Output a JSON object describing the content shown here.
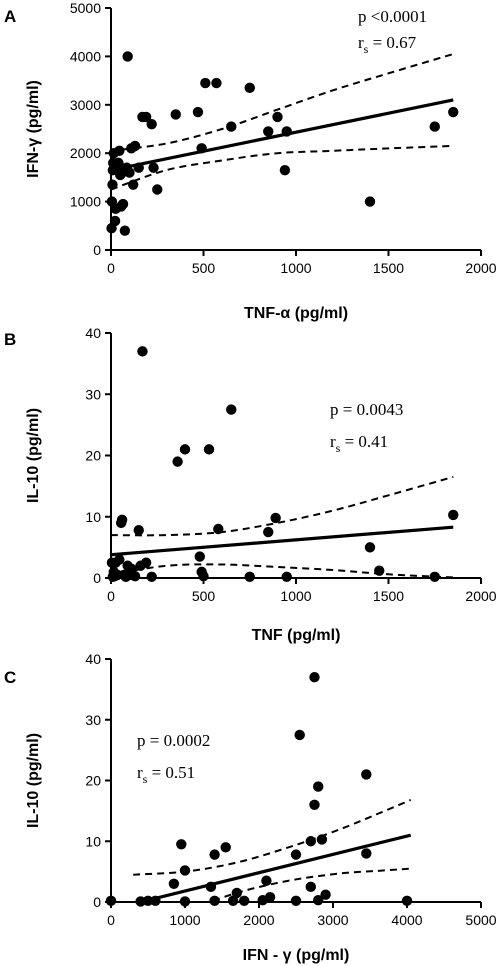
{
  "chart_data": [
    {
      "type": "scatter",
      "panel": "A",
      "xlabel": "TNF-α (pg/ml)",
      "ylabel": "IFN-γ (pg/ml)",
      "xlim": [
        0,
        2000
      ],
      "ylim": [
        0,
        5000
      ],
      "xticks": [
        0,
        500,
        1000,
        1500,
        2000
      ],
      "yticks": [
        0,
        1000,
        2000,
        3000,
        4000,
        5000
      ],
      "xtick_labels": [
        "0",
        "500",
        "1000",
        "1500",
        "2000"
      ],
      "ytick_labels": [
        "0",
        "1000",
        "2000",
        "3000",
        "4000",
        "5000"
      ],
      "annotation": {
        "p": "p <0.0001",
        "r_main": "r",
        "r_sub": "s",
        "r_value": " = 0.67"
      },
      "annotation_position": "top-right",
      "points": [
        [
          3,
          450
        ],
        [
          5,
          1000
        ],
        [
          8,
          1350
        ],
        [
          10,
          1650
        ],
        [
          12,
          1800
        ],
        [
          15,
          2000
        ],
        [
          18,
          1700
        ],
        [
          22,
          600
        ],
        [
          25,
          850
        ],
        [
          30,
          1750
        ],
        [
          40,
          1800
        ],
        [
          45,
          2050
        ],
        [
          50,
          1550
        ],
        [
          55,
          900
        ],
        [
          60,
          1600
        ],
        [
          65,
          950
        ],
        [
          75,
          400
        ],
        [
          85,
          1700
        ],
        [
          90,
          4000
        ],
        [
          100,
          1600
        ],
        [
          110,
          2100
        ],
        [
          120,
          1350
        ],
        [
          130,
          2150
        ],
        [
          150,
          1700
        ],
        [
          170,
          2750
        ],
        [
          190,
          2750
        ],
        [
          220,
          2600
        ],
        [
          230,
          1700
        ],
        [
          250,
          1250
        ],
        [
          350,
          2800
        ],
        [
          470,
          2850
        ],
        [
          490,
          2100
        ],
        [
          510,
          3450
        ],
        [
          570,
          3450
        ],
        [
          650,
          2550
        ],
        [
          750,
          3350
        ],
        [
          850,
          2450
        ],
        [
          900,
          2750
        ],
        [
          940,
          1650
        ],
        [
          950,
          2450
        ],
        [
          1400,
          1000
        ],
        [
          1750,
          2550
        ],
        [
          1850,
          2850
        ]
      ],
      "fit_line": [
        [
          0,
          1650
        ],
        [
          1850,
          3100
        ]
      ],
      "ci_upper": [
        [
          0,
          2050
        ],
        [
          300,
          2200
        ],
        [
          600,
          2500
        ],
        [
          900,
          2900
        ],
        [
          1200,
          3300
        ],
        [
          1500,
          3650
        ],
        [
          1850,
          4050
        ]
      ],
      "ci_lower": [
        [
          0,
          1250
        ],
        [
          300,
          1650
        ],
        [
          600,
          1850
        ],
        [
          900,
          2000
        ],
        [
          1200,
          2050
        ],
        [
          1500,
          2100
        ],
        [
          1850,
          2150
        ]
      ]
    },
    {
      "type": "scatter",
      "panel": "B",
      "xlabel": "TNF (pg/ml)",
      "ylabel": "IL-10 (pg/ml)",
      "xlim": [
        0,
        2000
      ],
      "ylim": [
        0,
        40
      ],
      "xticks": [
        0,
        500,
        1000,
        1500,
        2000
      ],
      "yticks": [
        0,
        10,
        20,
        30,
        40
      ],
      "xtick_labels": [
        "0",
        "500",
        "1000",
        "1500",
        "2000"
      ],
      "ytick_labels": [
        "0",
        "10",
        "20",
        "30",
        "40"
      ],
      "annotation": {
        "p": "p = 0.0043",
        "r_main": "r",
        "r_sub": "s",
        "r_value": " = 0.41"
      },
      "annotation_position": "top-right",
      "points": [
        [
          5,
          2.5
        ],
        [
          10,
          0.2
        ],
        [
          15,
          1.0
        ],
        [
          20,
          0.3
        ],
        [
          25,
          2.5
        ],
        [
          35,
          0.5
        ],
        [
          45,
          3.0
        ],
        [
          55,
          9.0
        ],
        [
          60,
          9.5
        ],
        [
          70,
          0.5
        ],
        [
          80,
          0.2
        ],
        [
          90,
          2.0
        ],
        [
          100,
          0.5
        ],
        [
          110,
          1.5
        ],
        [
          130,
          0.3
        ],
        [
          150,
          7.8
        ],
        [
          160,
          2.0
        ],
        [
          170,
          37.0
        ],
        [
          190,
          2.5
        ],
        [
          220,
          0.2
        ],
        [
          360,
          19.0
        ],
        [
          400,
          21.0
        ],
        [
          480,
          3.5
        ],
        [
          490,
          1.0
        ],
        [
          500,
          0.3
        ],
        [
          530,
          21.0
        ],
        [
          580,
          8.0
        ],
        [
          650,
          27.5
        ],
        [
          750,
          0.2
        ],
        [
          850,
          7.5
        ],
        [
          890,
          9.8
        ],
        [
          950,
          0.2
        ],
        [
          1400,
          5.0
        ],
        [
          1450,
          1.2
        ],
        [
          1750,
          0.2
        ],
        [
          1850,
          10.3
        ]
      ],
      "fit_line": [
        [
          0,
          3.8
        ],
        [
          1850,
          8.3
        ]
      ],
      "ci_upper": [
        [
          0,
          7.0
        ],
        [
          300,
          7.0
        ],
        [
          600,
          7.5
        ],
        [
          900,
          9.0
        ],
        [
          1200,
          11.0
        ],
        [
          1500,
          13.5
        ],
        [
          1850,
          16.5
        ]
      ],
      "ci_lower": [
        [
          0,
          0.6
        ],
        [
          300,
          2.0
        ],
        [
          600,
          2.2
        ],
        [
          900,
          1.8
        ],
        [
          1200,
          1.3
        ],
        [
          1500,
          0.6
        ],
        [
          1850,
          0.1
        ]
      ]
    },
    {
      "type": "scatter",
      "panel": "C",
      "xlabel": "IFN - γ (pg/ml)",
      "ylabel": "IL-10 (pg/ml)",
      "xlim": [
        0,
        5000
      ],
      "ylim": [
        0,
        40
      ],
      "xticks": [
        0,
        1000,
        2000,
        3000,
        4000,
        5000
      ],
      "yticks": [
        0,
        10,
        20,
        30,
        40
      ],
      "xtick_labels": [
        "0",
        "1000",
        "2000",
        "3000",
        "4000",
        "5000"
      ],
      "ytick_labels": [
        "0",
        "10",
        "20",
        "30",
        "40"
      ],
      "annotation": {
        "p": "p = 0.0002",
        "r_main": "r",
        "r_sub": "s",
        "r_value": " = 0.51"
      },
      "annotation_position": "top-left",
      "points": [
        [
          0,
          0.2
        ],
        [
          400,
          0.1
        ],
        [
          500,
          0.2
        ],
        [
          600,
          0.2
        ],
        [
          850,
          3.0
        ],
        [
          950,
          9.5
        ],
        [
          1000,
          5.2
        ],
        [
          1000,
          0.1
        ],
        [
          1350,
          2.5
        ],
        [
          1400,
          0.2
        ],
        [
          1400,
          7.8
        ],
        [
          1550,
          9.0
        ],
        [
          1650,
          0.2
        ],
        [
          1700,
          1.5
        ],
        [
          1800,
          0.2
        ],
        [
          2050,
          0.3
        ],
        [
          2100,
          3.5
        ],
        [
          2150,
          0.8
        ],
        [
          2500,
          0.2
        ],
        [
          2500,
          7.8
        ],
        [
          2550,
          27.5
        ],
        [
          2700,
          10.0
        ],
        [
          2700,
          2.5
        ],
        [
          2750,
          16.0
        ],
        [
          2750,
          37.0
        ],
        [
          2800,
          19.0
        ],
        [
          2800,
          0.3
        ],
        [
          2850,
          10.3
        ],
        [
          2900,
          1.2
        ],
        [
          3450,
          21.0
        ],
        [
          3450,
          8.0
        ],
        [
          4000,
          0.2
        ]
      ],
      "fit_line": [
        [
          400,
          0.0
        ],
        [
          4050,
          11.0
        ]
      ],
      "ci_upper": [
        [
          300,
          4.5
        ],
        [
          1000,
          5.0
        ],
        [
          1700,
          6.5
        ],
        [
          2400,
          9.0
        ],
        [
          3100,
          12.0
        ],
        [
          3700,
          15.0
        ],
        [
          4050,
          16.8
        ]
      ],
      "ci_lower": [
        [
          300,
          -4.0
        ],
        [
          1000,
          -1.5
        ],
        [
          1700,
          1.5
        ],
        [
          2400,
          3.5
        ],
        [
          3100,
          4.7
        ],
        [
          3700,
          5.2
        ],
        [
          4050,
          5.5
        ]
      ]
    }
  ]
}
